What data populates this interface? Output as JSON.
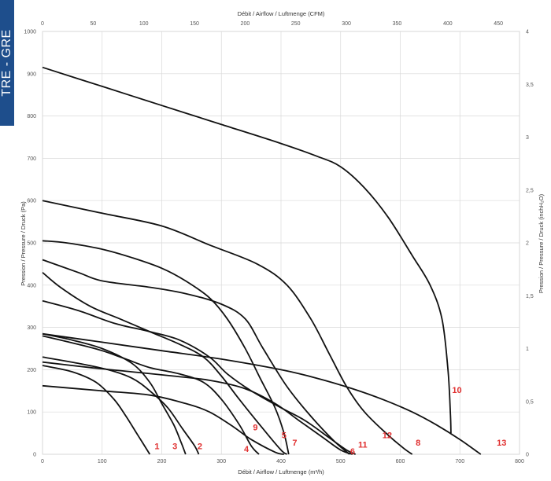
{
  "side_tab": {
    "text": "TRE - GRE"
  },
  "chart_data": {
    "type": "line",
    "x_top": {
      "label": "Débit / Airflow / Luftmenge (CFM)",
      "ticks": [
        "0",
        "50",
        "100",
        "150",
        "200",
        "250",
        "300",
        "350",
        "400",
        "450"
      ],
      "values": [
        0,
        50,
        100,
        150,
        200,
        250,
        300,
        350,
        400,
        450
      ]
    },
    "x_bottom": {
      "label": "Débit / Airflow / Luftmenge (m³/h)",
      "ticks": [
        "0",
        "100",
        "200",
        "300",
        "400",
        "500",
        "600",
        "700",
        "800"
      ],
      "values": [
        0,
        100,
        200,
        300,
        400,
        500,
        600,
        700,
        800
      ],
      "range": [
        0,
        800
      ]
    },
    "y_left": {
      "label": "Pression / Pressure / Druck (Pa)",
      "ticks": [
        "0",
        "100",
        "200",
        "300",
        "400",
        "500",
        "600",
        "700",
        "800",
        "900",
        "1000"
      ],
      "values": [
        0,
        100,
        200,
        300,
        400,
        500,
        600,
        700,
        800,
        900,
        1000
      ],
      "range": [
        0,
        1000
      ]
    },
    "y_right": {
      "label": "Pression / Pressure / Druck (inchH₂O)",
      "ticks": [
        "0",
        "0,5",
        "1",
        "1,5",
        "2",
        "2,5",
        "3",
        "3,5",
        "4"
      ],
      "values": [
        0,
        0.5,
        1,
        1.5,
        2,
        2.5,
        3,
        3.5,
        4
      ]
    },
    "grid": true,
    "series": [
      {
        "label": "1",
        "points": [
          [
            0,
            210
          ],
          [
            50,
            195
          ],
          [
            90,
            170
          ],
          [
            120,
            130
          ],
          [
            140,
            90
          ],
          [
            160,
            45
          ],
          [
            180,
            0
          ]
        ],
        "label_pos": [
          192,
          12
        ]
      },
      {
        "label": "2",
        "points": [
          [
            0,
            230
          ],
          [
            60,
            215
          ],
          [
            110,
            200
          ],
          [
            150,
            180
          ],
          [
            180,
            150
          ],
          [
            210,
            110
          ],
          [
            235,
            60
          ],
          [
            255,
            20
          ],
          [
            262,
            0
          ]
        ],
        "label_pos": [
          264,
          12
        ]
      },
      {
        "label": "3",
        "points": [
          [
            0,
            285
          ],
          [
            50,
            270
          ],
          [
            100,
            250
          ],
          [
            150,
            215
          ],
          [
            180,
            170
          ],
          [
            200,
            120
          ],
          [
            220,
            70
          ],
          [
            232,
            30
          ],
          [
            240,
            0
          ]
        ],
        "label_pos": [
          222,
          12
        ]
      },
      {
        "label": "4",
        "points": [
          [
            0,
            280
          ],
          [
            60,
            260
          ],
          [
            100,
            245
          ],
          [
            140,
            225
          ],
          [
            180,
            205
          ],
          [
            230,
            190
          ],
          [
            270,
            170
          ],
          [
            300,
            130
          ],
          [
            330,
            70
          ],
          [
            350,
            20
          ],
          [
            363,
            0
          ]
        ],
        "label_pos": [
          342,
          6
        ]
      },
      {
        "label": "5",
        "points": [
          [
            0,
            430
          ],
          [
            30,
            395
          ],
          [
            80,
            350
          ],
          [
            130,
            320
          ],
          [
            180,
            290
          ],
          [
            230,
            260
          ],
          [
            270,
            230
          ],
          [
            300,
            185
          ],
          [
            330,
            130
          ],
          [
            370,
            60
          ],
          [
            400,
            10
          ],
          [
            410,
            0
          ]
        ],
        "label_pos": [
          405,
          38
        ]
      },
      {
        "label": "6",
        "points": [
          [
            0,
            218
          ],
          [
            80,
            205
          ],
          [
            150,
            195
          ],
          [
            220,
            185
          ],
          [
            280,
            175
          ],
          [
            340,
            155
          ],
          [
            390,
            120
          ],
          [
            430,
            80
          ],
          [
            470,
            40
          ],
          [
            500,
            10
          ],
          [
            520,
            0
          ]
        ],
        "label_pos": [
          520,
          0
        ]
      },
      {
        "label": "7",
        "points": [
          [
            0,
            505
          ],
          [
            40,
            500
          ],
          [
            100,
            485
          ],
          [
            150,
            465
          ],
          [
            200,
            440
          ],
          [
            240,
            410
          ],
          [
            280,
            370
          ],
          [
            310,
            320
          ],
          [
            340,
            250
          ],
          [
            365,
            180
          ],
          [
            390,
            110
          ],
          [
            405,
            50
          ],
          [
            413,
            0
          ]
        ],
        "label_pos": [
          423,
          20
        ]
      },
      {
        "label": "8",
        "points": [
          [
            0,
            600
          ],
          [
            100,
            570
          ],
          [
            200,
            540
          ],
          [
            280,
            495
          ],
          [
            360,
            450
          ],
          [
            410,
            400
          ],
          [
            450,
            320
          ],
          [
            480,
            240
          ],
          [
            510,
            160
          ],
          [
            540,
            100
          ],
          [
            580,
            45
          ],
          [
            605,
            15
          ],
          [
            620,
            0
          ]
        ],
        "label_pos": [
          630,
          20
        ]
      },
      {
        "label": "9",
        "points": [
          [
            0,
            162
          ],
          [
            100,
            150
          ],
          [
            180,
            140
          ],
          [
            240,
            120
          ],
          [
            280,
            100
          ],
          [
            320,
            65
          ],
          [
            350,
            35
          ],
          [
            390,
            5
          ],
          [
            405,
            0
          ]
        ],
        "label_pos": [
          357,
          57
        ]
      },
      {
        "label": "10",
        "points": [
          [
            0,
            915
          ],
          [
            100,
            870
          ],
          [
            200,
            825
          ],
          [
            300,
            780
          ],
          [
            400,
            735
          ],
          [
            460,
            705
          ],
          [
            500,
            680
          ],
          [
            540,
            630
          ],
          [
            580,
            560
          ],
          [
            620,
            470
          ],
          [
            650,
            400
          ],
          [
            670,
            320
          ],
          [
            680,
            200
          ],
          [
            684,
            100
          ],
          [
            685,
            50
          ]
        ],
        "label_pos": [
          695,
          145
        ]
      },
      {
        "label": "11",
        "points": [
          [
            0,
            460
          ],
          [
            60,
            430
          ],
          [
            100,
            410
          ],
          [
            180,
            395
          ],
          [
            240,
            380
          ],
          [
            300,
            355
          ],
          [
            340,
            320
          ],
          [
            370,
            250
          ],
          [
            410,
            160
          ],
          [
            450,
            90
          ],
          [
            490,
            30
          ],
          [
            515,
            0
          ]
        ],
        "label_pos": [
          537,
          16
        ]
      },
      {
        "label": "12",
        "points": [
          [
            0,
            363
          ],
          [
            60,
            340
          ],
          [
            120,
            310
          ],
          [
            180,
            290
          ],
          [
            230,
            270
          ],
          [
            280,
            230
          ],
          [
            310,
            190
          ],
          [
            350,
            150
          ],
          [
            400,
            110
          ],
          [
            440,
            80
          ],
          [
            480,
            40
          ],
          [
            510,
            10
          ],
          [
            525,
            0
          ]
        ],
        "label_pos": [
          578,
          38
        ]
      },
      {
        "label": "13",
        "points": [
          [
            0,
            285
          ],
          [
            100,
            265
          ],
          [
            200,
            245
          ],
          [
            300,
            225
          ],
          [
            400,
            200
          ],
          [
            460,
            180
          ],
          [
            520,
            155
          ],
          [
            570,
            130
          ],
          [
            620,
            100
          ],
          [
            660,
            70
          ],
          [
            700,
            35
          ],
          [
            730,
            5
          ],
          [
            735,
            0
          ]
        ],
        "label_pos": [
          770,
          20
        ]
      }
    ]
  }
}
